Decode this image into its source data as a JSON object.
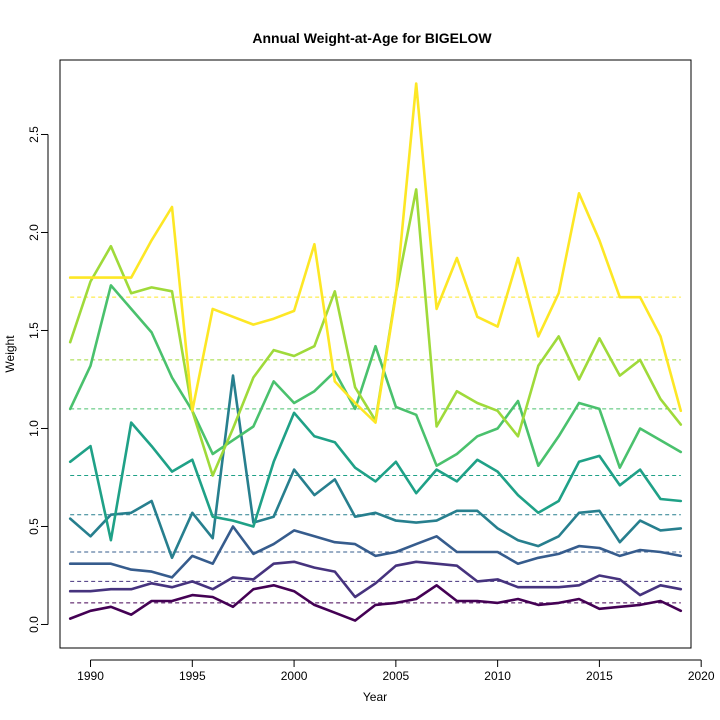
{
  "chart_data": {
    "type": "line",
    "title": "Annual Weight-at-Age for BIGELOW",
    "xlabel": "Year",
    "ylabel": "Weight",
    "xlim": [
      1988.5,
      2019.5
    ],
    "ylim": [
      -0.12,
      2.88
    ],
    "xticks": [
      1990,
      1995,
      2000,
      2005,
      2010,
      2015,
      2020
    ],
    "yticks": [
      0.0,
      0.5,
      1.0,
      1.5,
      2.0,
      2.5
    ],
    "ytick_labels": [
      "0.0",
      "0.5",
      "1.0",
      "1.5",
      "2.0",
      "2.5"
    ],
    "grid": false,
    "legend": "none",
    "x": [
      1989,
      1990,
      1991,
      1992,
      1993,
      1994,
      1995,
      1996,
      1997,
      1998,
      1999,
      2000,
      2001,
      2002,
      2003,
      2004,
      2005,
      2006,
      2007,
      2008,
      2009,
      2010,
      2011,
      2012,
      2013,
      2014,
      2015,
      2016,
      2017,
      2018,
      2019
    ],
    "series": [
      {
        "color": "#440154",
        "mean": 0.11,
        "values": [
          0.03,
          0.07,
          0.09,
          0.05,
          0.12,
          0.12,
          0.15,
          0.14,
          0.09,
          0.18,
          0.2,
          0.17,
          0.1,
          0.06,
          0.02,
          0.1,
          0.11,
          0.13,
          0.2,
          0.12,
          0.12,
          0.11,
          0.13,
          0.1,
          0.11,
          0.13,
          0.08,
          0.09,
          0.1,
          0.12,
          0.07
        ]
      },
      {
        "color": "#46337E",
        "mean": 0.22,
        "values": [
          0.17,
          0.17,
          0.18,
          0.18,
          0.21,
          0.19,
          0.22,
          0.18,
          0.24,
          0.23,
          0.31,
          0.32,
          0.29,
          0.27,
          0.14,
          0.21,
          0.3,
          0.32,
          0.31,
          0.3,
          0.22,
          0.23,
          0.19,
          0.19,
          0.19,
          0.2,
          0.25,
          0.23,
          0.15,
          0.2,
          0.18
        ]
      },
      {
        "color": "#365C8D",
        "mean": 0.37,
        "values": [
          0.31,
          0.31,
          0.31,
          0.28,
          0.27,
          0.24,
          0.35,
          0.31,
          0.5,
          0.36,
          0.41,
          0.48,
          0.45,
          0.42,
          0.41,
          0.35,
          0.37,
          0.41,
          0.45,
          0.37,
          0.37,
          0.37,
          0.31,
          0.34,
          0.36,
          0.4,
          0.39,
          0.35,
          0.38,
          0.37,
          0.35
        ]
      },
      {
        "color": "#277F8E",
        "mean": 0.56,
        "values": [
          0.54,
          0.45,
          0.56,
          0.57,
          0.63,
          0.34,
          0.57,
          0.44,
          1.27,
          0.52,
          0.55,
          0.79,
          0.66,
          0.74,
          0.55,
          0.57,
          0.53,
          0.52,
          0.53,
          0.58,
          0.58,
          0.49,
          0.43,
          0.4,
          0.45,
          0.57,
          0.58,
          0.42,
          0.53,
          0.48,
          0.49
        ]
      },
      {
        "color": "#1FA187",
        "mean": 0.76,
        "values": [
          0.83,
          0.91,
          0.43,
          1.03,
          0.91,
          0.78,
          0.84,
          0.55,
          0.53,
          0.5,
          0.83,
          1.08,
          0.96,
          0.93,
          0.8,
          0.73,
          0.83,
          0.67,
          0.79,
          0.73,
          0.84,
          0.78,
          0.66,
          0.57,
          0.63,
          0.83,
          0.86,
          0.71,
          0.79,
          0.64,
          0.63
        ]
      },
      {
        "color": "#4AC16D",
        "mean": 1.1,
        "values": [
          1.1,
          1.32,
          1.73,
          1.61,
          1.49,
          1.26,
          1.09,
          0.87,
          0.94,
          1.01,
          1.24,
          1.13,
          1.19,
          1.29,
          1.1,
          1.42,
          1.11,
          1.07,
          0.81,
          0.87,
          0.96,
          1.0,
          1.14,
          0.81,
          0.96,
          1.13,
          1.1,
          0.8,
          1.0,
          0.94,
          0.88
        ]
      },
      {
        "color": "#9FDA3A",
        "mean": 1.35,
        "values": [
          1.44,
          1.75,
          1.93,
          1.69,
          1.72,
          1.7,
          1.09,
          0.76,
          1.0,
          1.26,
          1.4,
          1.37,
          1.42,
          1.7,
          1.21,
          1.04,
          1.69,
          2.22,
          1.01,
          1.19,
          1.13,
          1.09,
          0.96,
          1.32,
          1.47,
          1.25,
          1.46,
          1.27,
          1.35,
          1.15,
          1.02
        ]
      },
      {
        "color": "#FDE725",
        "mean": 1.67,
        "values": [
          1.77,
          1.77,
          1.77,
          1.77,
          1.96,
          2.13,
          1.09,
          1.61,
          1.57,
          1.53,
          1.56,
          1.6,
          1.94,
          1.24,
          1.13,
          1.03,
          1.68,
          2.76,
          1.61,
          1.87,
          1.57,
          1.52,
          1.87,
          1.47,
          1.69,
          2.2,
          1.96,
          1.67,
          1.67,
          1.47,
          1.09
        ]
      }
    ]
  }
}
